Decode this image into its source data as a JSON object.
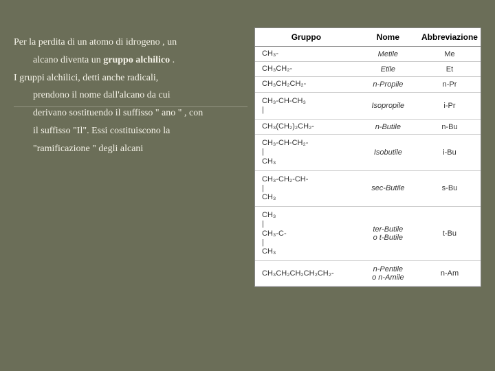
{
  "background_color": "#6b6e58",
  "text_color": "#f5f3e8",
  "divider_color": "rgba(245,243,232,0.3)",
  "body_text": {
    "line1": "Per la perdita di un atomo di idrogeno , un",
    "line2a": "alcano diventa un ",
    "line2b": "gruppo alchilico",
    "line2c": " .",
    "line3": "I gruppi alchilici, detti anche radicali,",
    "line4": "prendono il nome dall'alcano da cui",
    "line5": "derivano sostituendo il suffisso \" ano \" , con",
    "line6": "il suffisso \"Il\". Essi costituiscono la",
    "line7": "\"ramificazione \" degli alcani"
  },
  "table": {
    "headers": {
      "gruppo": "Gruppo",
      "nome": "Nome",
      "abbr": "Abbreviazione"
    },
    "rows": [
      {
        "formula": "CH₃-",
        "nome": "Metile",
        "abbr": "Me",
        "tall": false
      },
      {
        "formula": "CH₃CH₂-",
        "nome": "Etile",
        "abbr": "Et",
        "tall": false
      },
      {
        "formula": "CH₃CH₂CH₂-",
        "nome": "n-Propile",
        "abbr": "n-Pr",
        "tall": false
      },
      {
        "formula": "CH₃-CH-CH₃\n        |",
        "nome": "Isopropile",
        "abbr": "i-Pr",
        "tall": true
      },
      {
        "formula": "CH₃(CH₂)₂CH₂-",
        "nome": "n-Butile",
        "abbr": "n-Bu",
        "tall": false
      },
      {
        "formula": "CH₃-CH-CH₂-\n        |\n      CH₃",
        "nome": "Isobutile",
        "abbr": "i-Bu",
        "tall": true
      },
      {
        "formula": "CH₃-CH₂-CH-\n             |\n           CH₃",
        "nome": "sec-Butile",
        "abbr": "s-Bu",
        "tall": true
      },
      {
        "formula": "      CH₃\n        |\nCH₃-C-\n        |\n      CH₃",
        "nome": "ter-Butile\no t-Butile",
        "abbr": "t-Bu",
        "tall": true
      },
      {
        "formula": "CH₃CH₂CH₂CH₂CH₂-",
        "nome": "n-Pentile\no n-Amile",
        "abbr": "n-Am",
        "tall": true
      }
    ]
  }
}
